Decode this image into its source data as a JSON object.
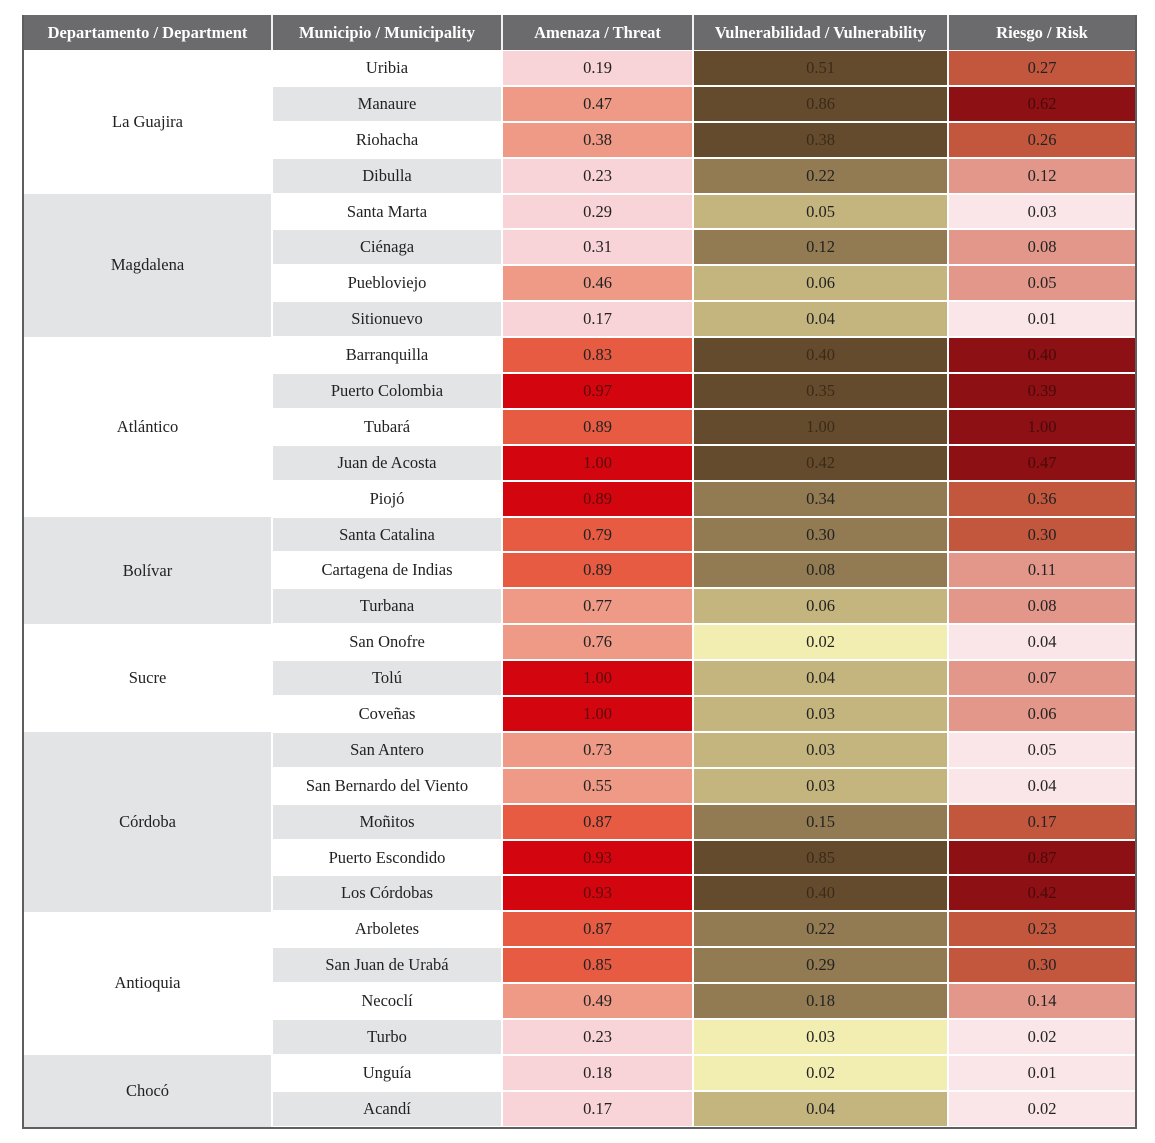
{
  "header": {
    "department": "Departamento / Department",
    "municipality": "Municipio / Municipality",
    "threat": "Amenaza / Threat",
    "vulnerability": "Vulnerabilidad / Vulnerability",
    "risk": "Riesgo / Risk"
  },
  "color_scales": {
    "threat": {
      "1": "#f8d4d8",
      "2": "#ee9a86",
      "3": "#e65b42",
      "4": "#d3050f"
    },
    "vulnerability": {
      "1": "#f2eeb2",
      "2": "#c4b47e",
      "3": "#927a52",
      "4": "#654b2d"
    },
    "risk": {
      "1": "#fae6e8",
      "2": "#e3978a",
      "3": "#c2573d",
      "4": "#8c1014"
    }
  },
  "departments": [
    {
      "name": "La Guajira",
      "municipalities": [
        {
          "name": "Uribia",
          "threat": "0.19",
          "tl": 1,
          "vulnerability": "0.51",
          "vl": 4,
          "risk": "0.27",
          "rl": 3
        },
        {
          "name": "Manaure",
          "threat": "0.47",
          "tl": 2,
          "vulnerability": "0.86",
          "vl": 4,
          "risk": "0.62",
          "rl": 4
        },
        {
          "name": "Riohacha",
          "threat": "0.38",
          "tl": 2,
          "vulnerability": "0.38",
          "vl": 4,
          "risk": "0.26",
          "rl": 3
        },
        {
          "name": "Dibulla",
          "threat": "0.23",
          "tl": 1,
          "vulnerability": "0.22",
          "vl": 3,
          "risk": "0.12",
          "rl": 2
        }
      ]
    },
    {
      "name": "Magdalena",
      "municipalities": [
        {
          "name": "Santa Marta",
          "threat": "0.29",
          "tl": 1,
          "vulnerability": "0.05",
          "vl": 2,
          "risk": "0.03",
          "rl": 1
        },
        {
          "name": "Ciénaga",
          "threat": "0.31",
          "tl": 1,
          "vulnerability": "0.12",
          "vl": 3,
          "risk": "0.08",
          "rl": 2
        },
        {
          "name": "Puebloviejo",
          "threat": "0.46",
          "tl": 2,
          "vulnerability": "0.06",
          "vl": 2,
          "risk": "0.05",
          "rl": 2
        },
        {
          "name": "Sitionuevo",
          "threat": "0.17",
          "tl": 1,
          "vulnerability": "0.04",
          "vl": 2,
          "risk": "0.01",
          "rl": 1
        }
      ]
    },
    {
      "name": "Atlántico",
      "municipalities": [
        {
          "name": "Barranquilla",
          "threat": "0.83",
          "tl": 3,
          "vulnerability": "0.40",
          "vl": 4,
          "risk": "0.40",
          "rl": 4
        },
        {
          "name": "Puerto Colombia",
          "threat": "0.97",
          "tl": 4,
          "vulnerability": "0.35",
          "vl": 4,
          "risk": "0.39",
          "rl": 4
        },
        {
          "name": "Tubará",
          "threat": "0.89",
          "tl": 3,
          "vulnerability": "1.00",
          "vl": 4,
          "risk": "1.00",
          "rl": 4
        },
        {
          "name": "Juan de Acosta",
          "threat": "1.00",
          "tl": 4,
          "vulnerability": "0.42",
          "vl": 4,
          "risk": "0.47",
          "rl": 4
        },
        {
          "name": "Piojó",
          "threat": "0.89",
          "tl": 4,
          "vulnerability": "0.34",
          "vl": 3,
          "risk": "0.36",
          "rl": 3
        }
      ]
    },
    {
      "name": "Bolívar",
      "municipalities": [
        {
          "name": "Santa Catalina",
          "threat": "0.79",
          "tl": 3,
          "vulnerability": "0.30",
          "vl": 3,
          "risk": "0.30",
          "rl": 3
        },
        {
          "name": "Cartagena de Indias",
          "threat": "0.89",
          "tl": 3,
          "vulnerability": "0.08",
          "vl": 3,
          "risk": "0.11",
          "rl": 2
        },
        {
          "name": "Turbana",
          "threat": "0.77",
          "tl": 2,
          "vulnerability": "0.06",
          "vl": 2,
          "risk": "0.08",
          "rl": 2
        }
      ]
    },
    {
      "name": "Sucre",
      "municipalities": [
        {
          "name": "San Onofre",
          "threat": "0.76",
          "tl": 2,
          "vulnerability": "0.02",
          "vl": 1,
          "risk": "0.04",
          "rl": 1
        },
        {
          "name": "Tolú",
          "threat": "1.00",
          "tl": 4,
          "vulnerability": "0.04",
          "vl": 2,
          "risk": "0.07",
          "rl": 2
        },
        {
          "name": "Coveñas",
          "threat": "1.00",
          "tl": 4,
          "vulnerability": "0.03",
          "vl": 2,
          "risk": "0.06",
          "rl": 2
        }
      ]
    },
    {
      "name": "Córdoba",
      "municipalities": [
        {
          "name": "San Antero",
          "threat": "0.73",
          "tl": 2,
          "vulnerability": "0.03",
          "vl": 2,
          "risk": "0.05",
          "rl": 1
        },
        {
          "name": "San Bernardo del Viento",
          "threat": "0.55",
          "tl": 2,
          "vulnerability": "0.03",
          "vl": 2,
          "risk": "0.04",
          "rl": 1
        },
        {
          "name": "Moñitos",
          "threat": "0.87",
          "tl": 3,
          "vulnerability": "0.15",
          "vl": 3,
          "risk": "0.17",
          "rl": 3
        },
        {
          "name": "Puerto Escondido",
          "threat": "0.93",
          "tl": 4,
          "vulnerability": "0.85",
          "vl": 4,
          "risk": "0.87",
          "rl": 4
        },
        {
          "name": "Los Córdobas",
          "threat": "0.93",
          "tl": 4,
          "vulnerability": "0.40",
          "vl": 4,
          "risk": "0.42",
          "rl": 4
        }
      ]
    },
    {
      "name": "Antioquia",
      "municipalities": [
        {
          "name": "Arboletes",
          "threat": "0.87",
          "tl": 3,
          "vulnerability": "0.22",
          "vl": 3,
          "risk": "0.23",
          "rl": 3
        },
        {
          "name": "San Juan de Urabá",
          "threat": "0.85",
          "tl": 3,
          "vulnerability": "0.29",
          "vl": 3,
          "risk": "0.30",
          "rl": 3
        },
        {
          "name": "Necoclí",
          "threat": "0.49",
          "tl": 2,
          "vulnerability": "0.18",
          "vl": 3,
          "risk": "0.14",
          "rl": 2
        },
        {
          "name": "Turbo",
          "threat": "0.23",
          "tl": 1,
          "vulnerability": "0.03",
          "vl": 1,
          "risk": "0.02",
          "rl": 1
        }
      ]
    },
    {
      "name": "Chocó",
      "municipalities": [
        {
          "name": "Unguía",
          "threat": "0.18",
          "tl": 1,
          "vulnerability": "0.02",
          "vl": 1,
          "risk": "0.01",
          "rl": 1
        },
        {
          "name": "Acandí",
          "threat": "0.17",
          "tl": 1,
          "vulnerability": "0.04",
          "vl": 2,
          "risk": "0.02",
          "rl": 1
        }
      ]
    }
  ]
}
